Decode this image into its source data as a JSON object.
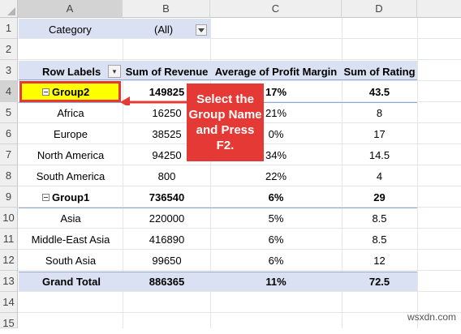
{
  "columns": [
    "A",
    "B",
    "C",
    "D"
  ],
  "rows": [
    "1",
    "2",
    "3",
    "4",
    "5",
    "6",
    "7",
    "8",
    "9",
    "10",
    "11",
    "12",
    "13",
    "14",
    "15"
  ],
  "filter": {
    "label": "Category",
    "value": "(All)"
  },
  "pivot": {
    "headers": [
      "Row Labels",
      "Sum of Revenue",
      "Average of Profit Margin",
      "Sum of Rating"
    ],
    "group2": {
      "label": "Group2",
      "revenue": "149825",
      "margin": "17%",
      "rating": "43.5"
    },
    "group2_items": [
      {
        "label": "Africa",
        "revenue": "16250",
        "margin": "21%",
        "rating": "8"
      },
      {
        "label": "Europe",
        "revenue": "38525",
        "margin": "0%",
        "rating": "17"
      },
      {
        "label": "North America",
        "revenue": "94250",
        "margin": "34%",
        "rating": "14.5"
      },
      {
        "label": "South America",
        "revenue": "800",
        "margin": "22%",
        "rating": "4"
      }
    ],
    "group1": {
      "label": "Group1",
      "revenue": "736540",
      "margin": "6%",
      "rating": "29"
    },
    "group1_items": [
      {
        "label": "Asia",
        "revenue": "220000",
        "margin": "5%",
        "rating": "8.5"
      },
      {
        "label": "Middle-East Asia",
        "revenue": "416890",
        "margin": "6%",
        "rating": "8.5"
      },
      {
        "label": "South Asia",
        "revenue": "99650",
        "margin": "6%",
        "rating": "12"
      }
    ],
    "total": {
      "label": "Grand Total",
      "revenue": "886365",
      "margin": "11%",
      "rating": "72.5"
    }
  },
  "callout": {
    "text": "Select the Group Name and Press F2."
  },
  "watermark": "wsxdn.com",
  "colors": {
    "selected_fill": "#ffff00",
    "selected_border": "#e53935",
    "callout": "#e53935",
    "pivot_band": "#d9e1f2"
  }
}
